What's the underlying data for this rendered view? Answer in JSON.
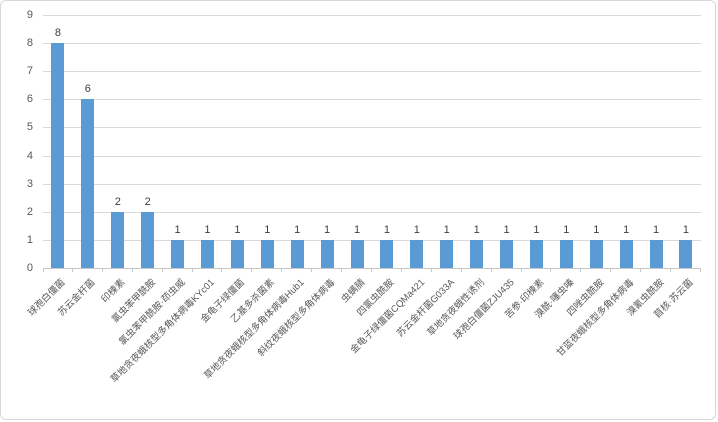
{
  "chart_data": {
    "type": "bar",
    "title": "",
    "xlabel": "",
    "ylabel": "",
    "ylim": [
      0,
      9
    ],
    "yticks": [
      0,
      1,
      2,
      3,
      4,
      5,
      6,
      7,
      8,
      9
    ],
    "grid": true,
    "legend": false,
    "data_labels_shown": true,
    "categories": [
      "球孢白僵菌",
      "苏云金杆菌",
      "印楝素",
      "氯虫苯甲酰胺",
      "氯虫苯甲酰胺·茚虫威",
      "草地贪夜蛾核型多角体病毒KYc01",
      "金龟子绿僵菌",
      "乙基多杀菌素",
      "草地贪夜蛾核型多角体病毒Hub1",
      "斜纹夜蛾核型多角体病毒",
      "虫螨腈",
      "四氯虫酰胺",
      "金龟子绿僵菌CQMa421",
      "苏云金杆菌G033A",
      "草地贪夜蛾性诱剂",
      "球孢白僵菌ZJU435",
      "苦参·印楝素",
      "溴酰·噻虫嗪",
      "四唑虫酰胺",
      "甘蓝夜蛾核型多角体病毒",
      "溴氰虫酰胺",
      "苜核·苏云菌"
    ],
    "values": [
      8,
      6,
      2,
      2,
      1,
      1,
      1,
      1,
      1,
      1,
      1,
      1,
      1,
      1,
      1,
      1,
      1,
      1,
      1,
      1,
      1,
      1
    ]
  },
  "colors": {
    "bar": "#5b9bd5",
    "gridline": "#d9d9d9",
    "axis_line": "#c6c6c6",
    "tick_text": "#595959",
    "data_label_text": "#404040",
    "frame_border": "#d7d7d7",
    "background": "#ffffff"
  }
}
